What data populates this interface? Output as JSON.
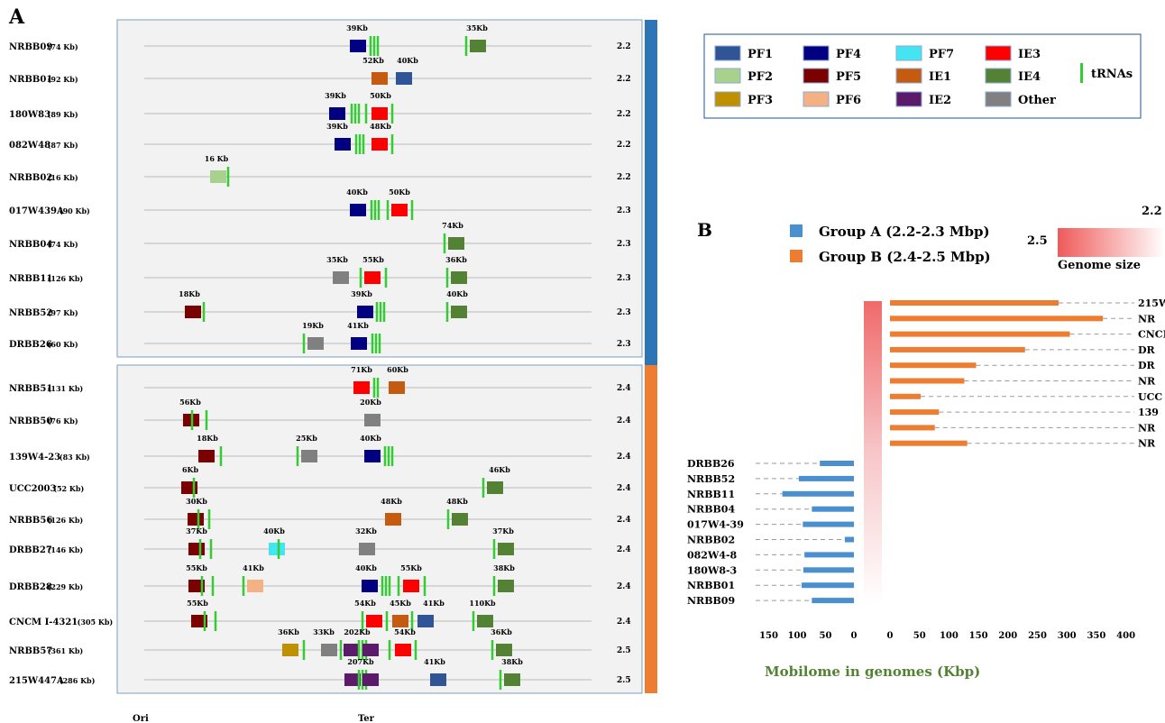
{
  "panel_a": {
    "label": "A",
    "ori_label": "Ori",
    "ter_label": "Ter",
    "rows": [
      {
        "name": "NRBB09",
        "size": "(74 Kb)",
        "gs": "2.2",
        "elements": [
          {
            "t": "PF4",
            "x": 397
          },
          {
            "t": "tRNA",
            "x": 411
          },
          {
            "t": "tRNA",
            "x": 415
          },
          {
            "t": "tRNA",
            "x": 419
          },
          {
            "t": "tRNA",
            "x": 517
          },
          {
            "t": "IE4",
            "x": 530
          }
        ],
        "labels": [
          {
            "text": "39Kb",
            "x": 396
          },
          {
            "text": "35Kb",
            "x": 529
          }
        ]
      },
      {
        "name": "NRBB01",
        "size": "(92 Kb)",
        "gs": "2.2",
        "elements": [
          {
            "t": "IE1",
            "x": 421
          },
          {
            "t": "PF1",
            "x": 448
          }
        ],
        "labels": [
          {
            "text": "52Kb",
            "x": 414
          },
          {
            "text": "40Kb",
            "x": 452
          }
        ]
      },
      {
        "name": "180W83",
        "size": "(89 Kb)",
        "gs": "2.2",
        "elements": [
          {
            "t": "PF4",
            "x": 374
          },
          {
            "t": "tRNA",
            "x": 390
          },
          {
            "t": "tRNA",
            "x": 394
          },
          {
            "t": "tRNA",
            "x": 398
          },
          {
            "t": "tRNA",
            "x": 406
          },
          {
            "t": "IE3",
            "x": 421
          },
          {
            "t": "tRNA",
            "x": 435
          }
        ],
        "labels": [
          {
            "text": "39Kb",
            "x": 372
          },
          {
            "text": "50Kb",
            "x": 422
          }
        ]
      },
      {
        "name": "082W48",
        "size": "(87 Kb)",
        "gs": "2.2",
        "elements": [
          {
            "t": "PF4",
            "x": 380
          },
          {
            "t": "tRNA",
            "x": 395
          },
          {
            "t": "tRNA",
            "x": 399
          },
          {
            "t": "tRNA",
            "x": 403
          },
          {
            "t": "IE3",
            "x": 421
          },
          {
            "t": "tRNA",
            "x": 435
          }
        ],
        "labels": [
          {
            "text": "39Kb",
            "x": 374
          },
          {
            "text": "48Kb",
            "x": 422
          }
        ]
      },
      {
        "name": "NRBB02",
        "size": "(16 Kb)",
        "gs": "2.2",
        "elements": [
          {
            "t": "PF2",
            "x": 242
          },
          {
            "t": "tRNA",
            "x": 253
          }
        ],
        "labels": [
          {
            "text": "16 Kb",
            "x": 240
          }
        ]
      },
      {
        "name": "017W439A",
        "size": "(90 Kb)",
        "gs": "2.3",
        "elements": [
          {
            "t": "PF4",
            "x": 397
          },
          {
            "t": "tRNA",
            "x": 412
          },
          {
            "t": "tRNA",
            "x": 416
          },
          {
            "t": "tRNA",
            "x": 420
          },
          {
            "t": "tRNA",
            "x": 430
          },
          {
            "t": "IE3",
            "x": 443
          },
          {
            "t": "tRNA",
            "x": 457
          }
        ],
        "labels": [
          {
            "text": "40Kb",
            "x": 396
          },
          {
            "text": "50Kb",
            "x": 443
          }
        ]
      },
      {
        "name": "NRBB04",
        "size": "(74 Kb)",
        "gs": "2.3",
        "elements": [
          {
            "t": "tRNA",
            "x": 493
          },
          {
            "t": "IE4",
            "x": 506
          }
        ],
        "labels": [
          {
            "text": "74Kb",
            "x": 502
          }
        ]
      },
      {
        "name": "NRBB11",
        "size": "(126 Kb)",
        "gs": "2.3",
        "elements": [
          {
            "t": "Other",
            "x": 378
          },
          {
            "t": "tRNA",
            "x": 400
          },
          {
            "t": "IE3",
            "x": 413
          },
          {
            "t": "tRNA",
            "x": 428
          },
          {
            "t": "tRNA",
            "x": 496
          },
          {
            "t": "IE4",
            "x": 509
          }
        ],
        "labels": [
          {
            "text": "35Kb",
            "x": 374
          },
          {
            "text": "55Kb",
            "x": 414
          },
          {
            "text": "36Kb",
            "x": 506
          }
        ]
      },
      {
        "name": "NRBB52",
        "size": "(97 Kb)",
        "gs": "2.3",
        "elements": [
          {
            "t": "PF5",
            "x": 214
          },
          {
            "t": "tRNA",
            "x": 226
          },
          {
            "t": "PF4",
            "x": 405
          },
          {
            "t": "tRNA",
            "x": 418
          },
          {
            "t": "tRNA",
            "x": 422
          },
          {
            "t": "tRNA",
            "x": 426
          },
          {
            "t": "tRNA",
            "x": 496
          },
          {
            "t": "IE4",
            "x": 509
          }
        ],
        "labels": [
          {
            "text": "18Kb",
            "x": 210
          },
          {
            "text": "39Kb",
            "x": 401
          },
          {
            "text": "40Kb",
            "x": 507
          }
        ]
      },
      {
        "name": "DRBB26",
        "size": "(60 Kb)",
        "gs": "2.3",
        "elements": [
          {
            "t": "tRNA",
            "x": 337
          },
          {
            "t": "Other",
            "x": 350
          },
          {
            "t": "PF4",
            "x": 398
          },
          {
            "t": "tRNA",
            "x": 413
          },
          {
            "t": "tRNA",
            "x": 417
          },
          {
            "t": "tRNA",
            "x": 421
          }
        ],
        "labels": [
          {
            "text": "19Kb",
            "x": 347
          },
          {
            "text": "41Kb",
            "x": 397
          }
        ]
      },
      {
        "name": "NRBB51",
        "size": "(131 Kb)",
        "gs": "2.4",
        "elements": [
          {
            "t": "IE3",
            "x": 401
          },
          {
            "t": "tRNA",
            "x": 415
          },
          {
            "t": "tRNA",
            "x": 419
          },
          {
            "t": "IE1",
            "x": 440
          }
        ],
        "labels": [
          {
            "text": "71Kb",
            "x": 401
          },
          {
            "text": "60Kb",
            "x": 441
          }
        ]
      },
      {
        "name": "NRBB50",
        "size": "(76 Kb)",
        "gs": "2.4",
        "elements": [
          {
            "t": "PF5",
            "x": 212
          },
          {
            "t": "tRNA",
            "x": 213
          },
          {
            "t": "tRNA",
            "x": 229
          },
          {
            "t": "Other",
            "x": 413
          }
        ],
        "labels": [
          {
            "text": "56Kb",
            "x": 211
          },
          {
            "text": "20Kb",
            "x": 411
          }
        ]
      },
      {
        "name": "139W4-23",
        "size": "(83 Kb)",
        "gs": "2.4",
        "elements": [
          {
            "t": "PF5",
            "x": 229
          },
          {
            "t": "tRNA",
            "x": 245
          },
          {
            "t": "tRNA",
            "x": 330
          },
          {
            "t": "Other",
            "x": 343
          },
          {
            "t": "PF4",
            "x": 413
          },
          {
            "t": "tRNA",
            "x": 427
          },
          {
            "t": "tRNA",
            "x": 431
          },
          {
            "t": "tRNA",
            "x": 435
          }
        ],
        "labels": [
          {
            "text": "18Kb",
            "x": 230
          },
          {
            "text": "25Kb",
            "x": 340
          },
          {
            "text": "40Kb",
            "x": 411
          }
        ]
      },
      {
        "name": "UCC2003",
        "size": "(52 Kb)",
        "gs": "2.4",
        "elements": [
          {
            "t": "PF5",
            "x": 210
          },
          {
            "t": "tRNA",
            "x": 215
          },
          {
            "t": "tRNA",
            "x": 536
          },
          {
            "t": "IE4",
            "x": 549
          }
        ],
        "labels": [
          {
            "text": "6Kb",
            "x": 211
          },
          {
            "text": "46Kb",
            "x": 554
          }
        ]
      },
      {
        "name": "NRBB56",
        "size": "(126 Kb)",
        "gs": "2.4",
        "elements": [
          {
            "t": "PF5",
            "x": 217
          },
          {
            "t": "tRNA",
            "x": 220
          },
          {
            "t": "tRNA",
            "x": 232
          },
          {
            "t": "IE1",
            "x": 436
          },
          {
            "t": "tRNA",
            "x": 497
          },
          {
            "t": "IE4",
            "x": 510
          }
        ],
        "labels": [
          {
            "text": "30Kb",
            "x": 218
          },
          {
            "text": "48Kb",
            "x": 434
          },
          {
            "text": "48Kb",
            "x": 507
          }
        ]
      },
      {
        "name": "DRBB27",
        "size": "(146 Kb)",
        "gs": "2.4",
        "elements": [
          {
            "t": "PF5",
            "x": 218
          },
          {
            "t": "tRNA",
            "x": 222
          },
          {
            "t": "tRNA",
            "x": 234
          },
          {
            "t": "PF7",
            "x": 307
          },
          {
            "t": "tRNA",
            "x": 309
          },
          {
            "t": "Other",
            "x": 407
          },
          {
            "t": "tRNA",
            "x": 548
          },
          {
            "t": "IE4",
            "x": 561
          }
        ],
        "labels": [
          {
            "text": "37Kb",
            "x": 218
          },
          {
            "text": "40Kb",
            "x": 304
          },
          {
            "text": "32Kb",
            "x": 406
          },
          {
            "text": "37Kb",
            "x": 558
          }
        ]
      },
      {
        "name": "DRBB28",
        "size": "(229 Kb)",
        "gs": "2.4",
        "elements": [
          {
            "t": "PF5",
            "x": 218
          },
          {
            "t": "tRNA",
            "x": 224
          },
          {
            "t": "tRNA",
            "x": 236
          },
          {
            "t": "tRNA",
            "x": 270
          },
          {
            "t": "PF6",
            "x": 283
          },
          {
            "t": "PF4",
            "x": 410
          },
          {
            "t": "tRNA",
            "x": 424
          },
          {
            "t": "tRNA",
            "x": 428
          },
          {
            "t": "tRNA",
            "x": 432
          },
          {
            "t": "tRNA",
            "x": 442
          },
          {
            "t": "IE3",
            "x": 456
          },
          {
            "t": "tRNA",
            "x": 471
          },
          {
            "t": "tRNA",
            "x": 548
          },
          {
            "t": "IE4",
            "x": 561
          }
        ],
        "labels": [
          {
            "text": "55Kb",
            "x": 218
          },
          {
            "text": "41Kb",
            "x": 281
          },
          {
            "text": "40Kb",
            "x": 406
          },
          {
            "text": "55Kb",
            "x": 456
          },
          {
            "text": "38Kb",
            "x": 559
          }
        ]
      },
      {
        "name": "CNCM I-4321",
        "size": "(305 Kb)",
        "gs": "2.4",
        "elements": [
          {
            "t": "PF5",
            "x": 221
          },
          {
            "t": "tRNA",
            "x": 227
          },
          {
            "t": "tRNA",
            "x": 239
          },
          {
            "t": "tRNA",
            "x": 402
          },
          {
            "t": "IE3",
            "x": 415
          },
          {
            "t": "tRNA",
            "x": 429
          },
          {
            "t": "IE1",
            "x": 444
          },
          {
            "t": "tRNA",
            "x": 457
          },
          {
            "t": "PF1",
            "x": 472
          },
          {
            "t": "tRNA",
            "x": 525
          },
          {
            "t": "IE4",
            "x": 538
          }
        ],
        "labels": [
          {
            "text": "55Kb",
            "x": 219
          },
          {
            "text": "54Kb",
            "x": 405
          },
          {
            "text": "45Kb",
            "x": 444
          },
          {
            "text": "41Kb",
            "x": 481
          },
          {
            "text": "110Kb",
            "x": 535
          }
        ]
      },
      {
        "name": "NRBB57",
        "size": "(361 Kb)",
        "gs": "2.5",
        "elements": [
          {
            "t": "PF3",
            "x": 322
          },
          {
            "t": "tRNA",
            "x": 337
          },
          {
            "t": "Other",
            "x": 365
          },
          {
            "t": "tRNA",
            "x": 378
          },
          {
            "t": "IE2",
            "x": 390
          },
          {
            "t": "tRNA",
            "x": 398
          },
          {
            "t": "tRNA",
            "x": 402
          },
          {
            "t": "tRNA",
            "x": 406
          },
          {
            "t": "IE2",
            "x": 411
          },
          {
            "t": "tRNA",
            "x": 432
          },
          {
            "t": "IE3",
            "x": 447
          },
          {
            "t": "tRNA",
            "x": 461
          },
          {
            "t": "tRNA",
            "x": 546
          },
          {
            "t": "IE4",
            "x": 559
          }
        ],
        "labels": [
          {
            "text": "36Kb",
            "x": 320
          },
          {
            "text": "33Kb",
            "x": 359
          },
          {
            "text": "202Kb",
            "x": 396
          },
          {
            "text": "54Kb",
            "x": 449
          },
          {
            "text": "36Kb",
            "x": 556
          }
        ]
      },
      {
        "name": "215W447A",
        "size": "(286 Kb)",
        "gs": "2.5",
        "elements": [
          {
            "t": "IE2",
            "x": 391
          },
          {
            "t": "tRNA",
            "x": 398
          },
          {
            "t": "tRNA",
            "x": 402
          },
          {
            "t": "tRNA",
            "x": 406
          },
          {
            "t": "IE2",
            "x": 411
          },
          {
            "t": "PF1",
            "x": 486
          },
          {
            "t": "tRNA",
            "x": 555
          },
          {
            "t": "IE4",
            "x": 568
          }
        ],
        "labels": [
          {
            "text": "207Kb",
            "x": 400
          },
          {
            "text": "41Kb",
            "x": 482
          },
          {
            "text": "38Kb",
            "x": 568
          }
        ]
      }
    ]
  },
  "legend": {
    "items": [
      {
        "key": "PF1",
        "label": "PF1",
        "color": "#2f5597"
      },
      {
        "key": "PF2",
        "label": "PF2",
        "color": "#a9d18e"
      },
      {
        "key": "PF3",
        "label": "PF3",
        "color": "#bf9000"
      },
      {
        "key": "PF4",
        "label": "PF4",
        "color": "#000080"
      },
      {
        "key": "PF5",
        "label": "PF5",
        "color": "#7b0000"
      },
      {
        "key": "PF6",
        "label": "PF6",
        "color": "#f4b183"
      },
      {
        "key": "PF7",
        "label": "PF7",
        "color": "#44e4f0"
      },
      {
        "key": "IE1",
        "label": "IE1",
        "color": "#c55a11"
      },
      {
        "key": "IE2",
        "label": "IE2",
        "color": "#5c1a6b"
      },
      {
        "key": "IE3",
        "label": "IE3",
        "color": "#ff0000"
      },
      {
        "key": "IE4",
        "label": "IE4",
        "color": "#548235"
      },
      {
        "key": "Other",
        "label": "Other",
        "color": "#808080"
      }
    ],
    "trna_label": "tRNAs",
    "trna_color": "#33cc33"
  },
  "chart_data": {
    "type": "bar",
    "panel_label": "B",
    "xlabel": "Mobilome in genomes (Kbp)",
    "groups": [
      {
        "name": "Group A (2.2-2.3 Mbp)",
        "color": "#4a8fd0"
      },
      {
        "name": "Group B (2.4-2.5 Mbp)",
        "color": "#ed7d31"
      }
    ],
    "genome_size_label": "Genome size",
    "genome_size_scale": [
      "2.5",
      "2.2"
    ],
    "left_axis_ticks": [
      "150",
      "100",
      "50",
      "0"
    ],
    "right_axis_ticks": [
      "0",
      "50",
      "100",
      "150",
      "200",
      "250",
      "300",
      "350",
      "400"
    ],
    "group_b": [
      {
        "name": "215W",
        "value": 286
      },
      {
        "name": "NR",
        "value": 361
      },
      {
        "name": "CNCM I",
        "value": 305
      },
      {
        "name": "DR",
        "value": 229
      },
      {
        "name": "DR",
        "value": 146
      },
      {
        "name": "NR",
        "value": 126
      },
      {
        "name": "UCC",
        "value": 52
      },
      {
        "name": "139",
        "value": 83
      },
      {
        "name": "NR",
        "value": 76
      },
      {
        "name": "NR",
        "value": 131
      }
    ],
    "group_a": [
      {
        "name": "DRBB26",
        "value": 60
      },
      {
        "name": "NRBB52",
        "value": 97
      },
      {
        "name": "NRBB11",
        "value": 126
      },
      {
        "name": "NRBB04",
        "value": 74
      },
      {
        "name": "017W4-39",
        "value": 90
      },
      {
        "name": "NRBB02",
        "value": 16
      },
      {
        "name": "082W4-8",
        "value": 87
      },
      {
        "name": "180W8-3",
        "value": 89
      },
      {
        "name": "NRBB01",
        "value": 92
      },
      {
        "name": "NRBB09",
        "value": 74
      }
    ]
  }
}
